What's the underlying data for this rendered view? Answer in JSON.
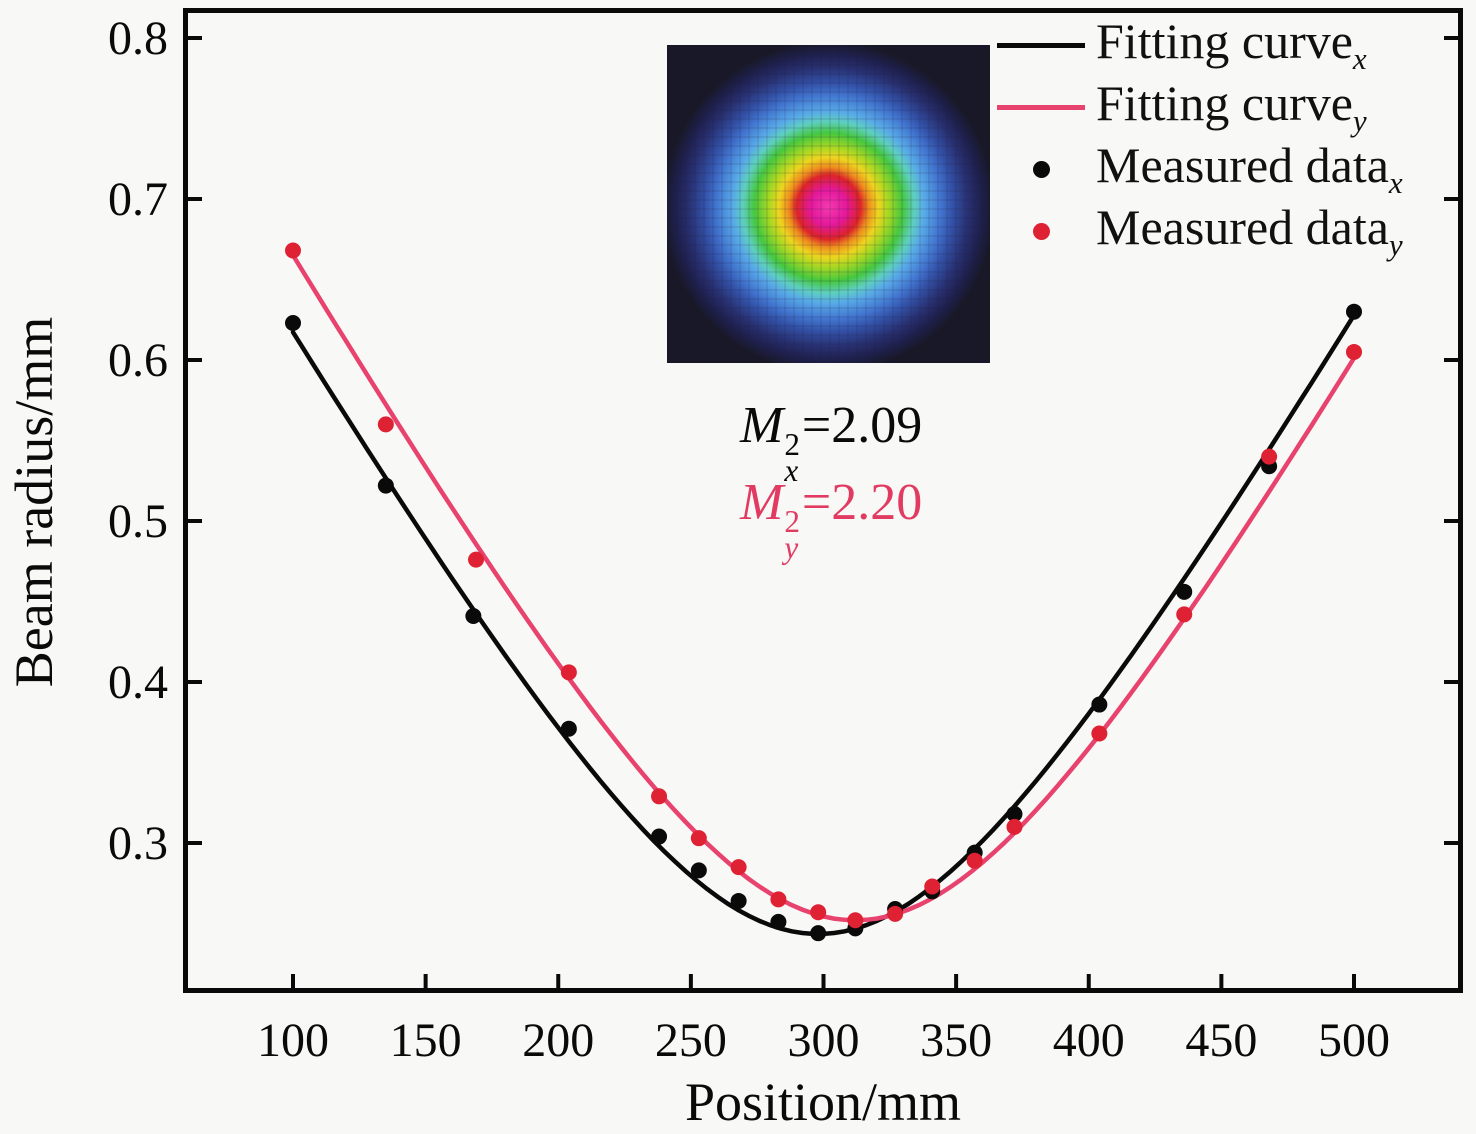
{
  "colors": {
    "background": "#f8f8f6",
    "frame": "#0a0a0a",
    "black": "#0a0a0a",
    "pink_curve": "#e8436e",
    "red_marker": "#de2133",
    "annotation_pink": "#e23b62"
  },
  "axes": {
    "x": {
      "label": "Position/mm",
      "tick_values": [
        100,
        150,
        200,
        250,
        300,
        350,
        400,
        450,
        500
      ],
      "tick_labels": [
        "100",
        "150",
        "200",
        "250",
        "300",
        "350",
        "400",
        "450",
        "500"
      ],
      "range": [
        58.5,
        541.2
      ]
    },
    "y": {
      "label": "Beam radius/mm",
      "tick_values": [
        0.3,
        0.4,
        0.5,
        0.6,
        0.7,
        0.8
      ],
      "tick_labels": [
        "0.3",
        "0.4",
        "0.5",
        "0.6",
        "0.7",
        "0.8"
      ],
      "range": [
        0.207,
        0.819
      ]
    }
  },
  "legend": {
    "items": [
      {
        "sample": "line",
        "color_key": "black",
        "label": "Fitting curve",
        "sub": "x"
      },
      {
        "sample": "line",
        "color_key": "pink_curve",
        "label": "Fitting curve",
        "sub": "y"
      },
      {
        "sample": "dot",
        "color_key": "black",
        "label": "Measured data",
        "sub": "x"
      },
      {
        "sample": "dot",
        "color_key": "red_marker",
        "label": "Measured data",
        "sub": "y"
      }
    ]
  },
  "annotations": [
    {
      "base": "M",
      "sup": "2",
      "sub": "x",
      "rest": "=2.09",
      "color_key": "black"
    },
    {
      "base": "M",
      "sup": "2",
      "sub": "y",
      "rest": "=2.20",
      "color_key": "annotation_pink"
    }
  ],
  "inset": {
    "description": "laser beam intensity profile (CCD false-color image)",
    "gradient": [
      "#f43ab0 0px",
      "#e5189c 18px",
      "#dd2428 32px",
      "#ef8c1e 40px",
      "#eed51f 50px",
      "#a8d822 60px",
      "#46c83e 74px",
      "#5ecfc0 86px",
      "#58aae8 96px",
      "#4276d0 112px",
      "#3352a8 124px",
      "#283070 140px",
      "#1f2150 152px",
      "#181826 166px"
    ]
  },
  "chart_data": {
    "type": "scatter",
    "title": "",
    "xlabel": "Position/mm",
    "ylabel": "Beam radius/mm",
    "xlim": [
      58.5,
      541.2
    ],
    "ylim": [
      0.207,
      0.819
    ],
    "grid": false,
    "legend_position": "top-right",
    "series": [
      {
        "name": "Fitting curve_x",
        "kind": "fit_curve",
        "color_key": "black",
        "fit": {
          "w0": 0.2435,
          "z0": 298,
          "zR": 85.0
        },
        "z_range": [
          100,
          500
        ]
      },
      {
        "name": "Fitting curve_y",
        "kind": "fit_curve",
        "color_key": "pink_curve",
        "fit": {
          "w0": 0.252,
          "z0": 312,
          "zR": 86.8
        },
        "z_range": [
          100,
          500
        ]
      },
      {
        "name": "Measured data_x",
        "kind": "scatter",
        "color_key": "black",
        "points": [
          [
            100,
            0.623
          ],
          [
            135,
            0.522
          ],
          [
            168,
            0.441
          ],
          [
            204,
            0.371
          ],
          [
            238,
            0.304
          ],
          [
            253,
            0.283
          ],
          [
            268,
            0.264
          ],
          [
            283,
            0.251
          ],
          [
            298,
            0.244
          ],
          [
            312,
            0.247
          ],
          [
            327,
            0.259
          ],
          [
            341,
            0.27
          ],
          [
            357,
            0.294
          ],
          [
            372,
            0.318
          ],
          [
            404,
            0.386
          ],
          [
            436,
            0.456
          ],
          [
            468,
            0.534
          ],
          [
            500,
            0.63
          ]
        ]
      },
      {
        "name": "Measured data_y",
        "kind": "scatter",
        "color_key": "red_marker",
        "points": [
          [
            100,
            0.668
          ],
          [
            135,
            0.56
          ],
          [
            169,
            0.476
          ],
          [
            204,
            0.406
          ],
          [
            238,
            0.329
          ],
          [
            253,
            0.303
          ],
          [
            268,
            0.285
          ],
          [
            283,
            0.265
          ],
          [
            298,
            0.257
          ],
          [
            312,
            0.252
          ],
          [
            327,
            0.256
          ],
          [
            341,
            0.273
          ],
          [
            357,
            0.289
          ],
          [
            372,
            0.31
          ],
          [
            404,
            0.368
          ],
          [
            436,
            0.442
          ],
          [
            468,
            0.54
          ],
          [
            500,
            0.605
          ]
        ]
      }
    ]
  }
}
